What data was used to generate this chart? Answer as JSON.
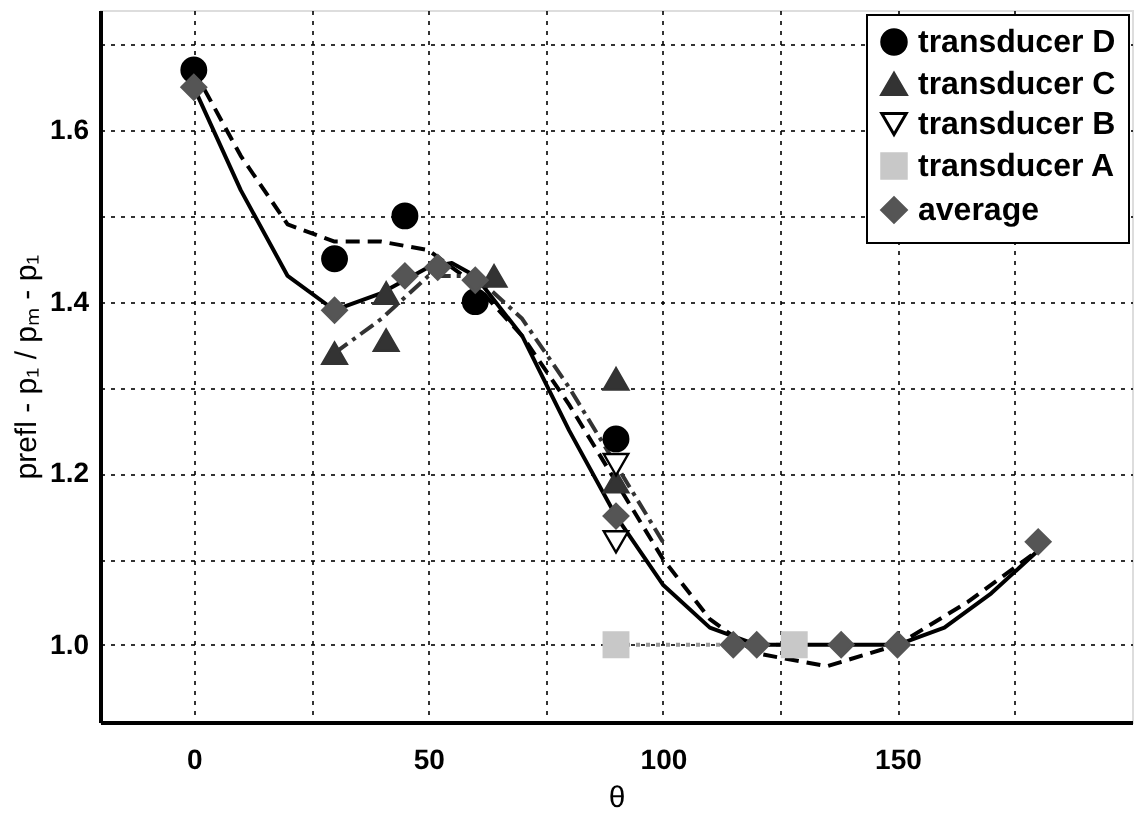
{
  "chart_data": {
    "type": "scatter",
    "xlabel": "θ",
    "ylabel": "prefl - p₁ / pₘ - p₁",
    "xlim": [
      -20,
      200
    ],
    "ylim": [
      0.91,
      1.74
    ],
    "xticks": [
      0,
      {
        "value": 25,
        "label": null
      },
      50,
      {
        "value": 75,
        "label": null
      },
      100,
      {
        "value": 125,
        "label": null
      },
      150,
      {
        "value": 175,
        "label": null
      }
    ],
    "yticks": [
      {
        "value": 1.0,
        "label": "1.0"
      },
      {
        "value": 1.1,
        "label": null
      },
      1.2,
      {
        "value": 1.3,
        "label": null
      },
      1.4,
      {
        "value": 1.5,
        "label": null
      },
      1.6,
      {
        "value": 1.7,
        "label": null
      }
    ],
    "grid": true,
    "legend": "top right",
    "series": [
      {
        "type": "line",
        "line_style": "dashed",
        "color": "#000000",
        "x": [
          0,
          10,
          20,
          30,
          40,
          50,
          60,
          70,
          80,
          90,
          100,
          110,
          120,
          135,
          150,
          165,
          180
        ],
        "values": [
          1.67,
          1.57,
          1.49,
          1.47,
          1.47,
          1.46,
          1.42,
          1.36,
          1.28,
          1.19,
          1.1,
          1.03,
          0.99,
          0.975,
          1.0,
          1.05,
          1.11
        ]
      },
      {
        "type": "line",
        "line_style": "dashdot",
        "color": "#333333",
        "x": [
          30,
          40,
          50,
          60,
          70,
          80,
          90,
          100
        ],
        "values": [
          1.34,
          1.38,
          1.43,
          1.43,
          1.38,
          1.3,
          1.21,
          1.12
        ]
      },
      {
        "type": "line",
        "line_style": "dotted",
        "color": "#999999",
        "x": [
          90,
          130
        ],
        "values": [
          1.0,
          1.0
        ]
      },
      {
        "type": "line",
        "line_style": "solid",
        "color": "#000000",
        "x": [
          0,
          10,
          20,
          30,
          40,
          50,
          55,
          60,
          70,
          80,
          90,
          100,
          110,
          120,
          135,
          150,
          160,
          170,
          180
        ],
        "values": [
          1.65,
          1.53,
          1.43,
          1.39,
          1.41,
          1.44,
          1.445,
          1.43,
          1.36,
          1.25,
          1.15,
          1.07,
          1.02,
          1.0,
          1.0,
          1.0,
          1.02,
          1.06,
          1.11
        ]
      },
      {
        "name": "transducer D",
        "marker": "circle",
        "color": "#000000",
        "x": [
          0,
          30,
          45,
          60,
          90
        ],
        "values": [
          1.67,
          1.45,
          1.5,
          1.4,
          1.24
        ]
      },
      {
        "name": "transducer C",
        "marker": "triangle",
        "color": "#333333",
        "x": [
          30,
          41,
          41,
          64,
          90,
          90
        ],
        "values": [
          1.34,
          1.355,
          1.41,
          1.43,
          1.31,
          1.19
        ]
      },
      {
        "name": "transducer B",
        "marker": "triangle-down",
        "color": "#000000",
        "x": [
          90,
          90
        ],
        "values": [
          1.21,
          1.12
        ]
      },
      {
        "name": "transducer A",
        "marker": "square",
        "color": "#c8c8c8",
        "x": [
          90,
          128
        ],
        "values": [
          1.0,
          1.0
        ]
      },
      {
        "name": "average",
        "marker": "diamond",
        "color": "#555555",
        "x": [
          0,
          30,
          45,
          52,
          60,
          90,
          115,
          120,
          138,
          150,
          180
        ],
        "values": [
          1.65,
          1.39,
          1.43,
          1.44,
          1.425,
          1.15,
          1.0,
          1.0,
          1.0,
          1.0,
          1.12
        ]
      }
    ]
  }
}
